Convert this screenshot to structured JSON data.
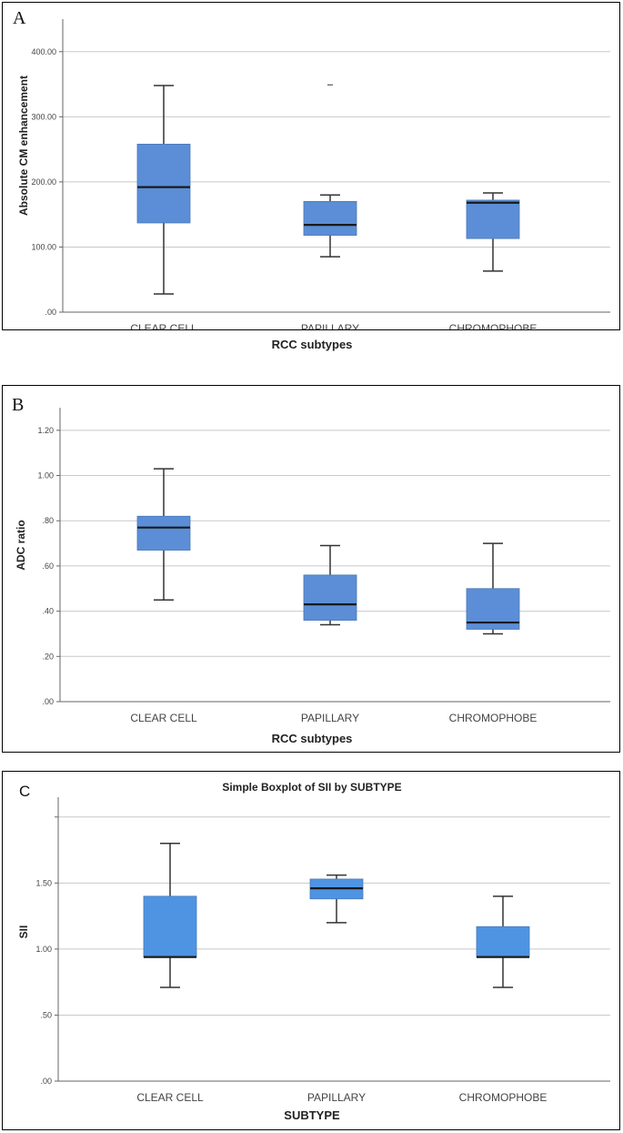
{
  "chart_data": [
    {
      "panel": "A",
      "type": "box",
      "title": "",
      "xlabel": "RCC subtypes",
      "ylabel": "Absolute CM enhancement",
      "ylim": [
        0,
        450
      ],
      "yticks": [
        0,
        100,
        200,
        300,
        400
      ],
      "ytick_labels": [
        ".00",
        "100.00",
        "200.00",
        "300.00",
        "400.00"
      ],
      "categories": [
        "CLEAR CELL",
        "PAPILLARY",
        "CHROMOPHOBE"
      ],
      "boxes": [
        {
          "whisker_low": 28,
          "q1": 137,
          "median": 192,
          "q3": 258,
          "whisker_high": 348
        },
        {
          "whisker_low": 85,
          "q1": 118,
          "median": 134,
          "q3": 170,
          "whisker_high": 180
        },
        {
          "whisker_low": 63,
          "q1": 113,
          "median": 168,
          "q3": 172,
          "whisker_high": 183
        }
      ],
      "outliers": [
        {
          "category": "PAPILLARY",
          "value": 349
        }
      ]
    },
    {
      "panel": "B",
      "type": "box",
      "title": "",
      "xlabel": "RCC subtypes",
      "ylabel": "ADC ratio",
      "ylim": [
        0,
        1.3
      ],
      "yticks": [
        0,
        0.2,
        0.4,
        0.6,
        0.8,
        1.0,
        1.2
      ],
      "ytick_labels": [
        ".00",
        ".20",
        ".40",
        ".60",
        ".80",
        "1.00",
        "1.20"
      ],
      "categories": [
        "CLEAR CELL",
        "PAPILLARY",
        "CHROMOPHOBE"
      ],
      "boxes": [
        {
          "whisker_low": 0.45,
          "q1": 0.67,
          "median": 0.77,
          "q3": 0.82,
          "whisker_high": 1.03
        },
        {
          "whisker_low": 0.34,
          "q1": 0.36,
          "median": 0.43,
          "q3": 0.56,
          "whisker_high": 0.69
        },
        {
          "whisker_low": 0.3,
          "q1": 0.32,
          "median": 0.35,
          "q3": 0.5,
          "whisker_high": 0.7
        }
      ],
      "outliers": []
    },
    {
      "panel": "C",
      "type": "box",
      "title": "Simple Boxplot of SII by SUBTYPE",
      "xlabel": "SUBTYPE",
      "ylabel": "SII",
      "ylim": [
        0,
        2.15
      ],
      "yticks": [
        0,
        0.5,
        1.0,
        1.5,
        2.0
      ],
      "ytick_labels": [
        ".00",
        ".50",
        "1.00",
        "1.50",
        ""
      ],
      "categories": [
        "CLEAR CELL",
        "PAPILLARY",
        "CHROMOPHOBE"
      ],
      "boxes": [
        {
          "whisker_low": 0.71,
          "q1": 0.94,
          "median": 0.94,
          "q3": 1.4,
          "whisker_high": 1.8
        },
        {
          "whisker_low": 1.2,
          "q1": 1.38,
          "median": 1.46,
          "q3": 1.53,
          "whisker_high": 1.56
        },
        {
          "whisker_low": 0.71,
          "q1": 0.94,
          "median": 0.94,
          "q3": 1.17,
          "whisker_high": 1.4
        }
      ],
      "outliers": []
    }
  ],
  "colors": {
    "box_fill": "#5b8ed6",
    "box_fill_c": "#4f94e3",
    "grid": "#c9c9c9",
    "axis": "#666666",
    "whisker": "#333333"
  }
}
